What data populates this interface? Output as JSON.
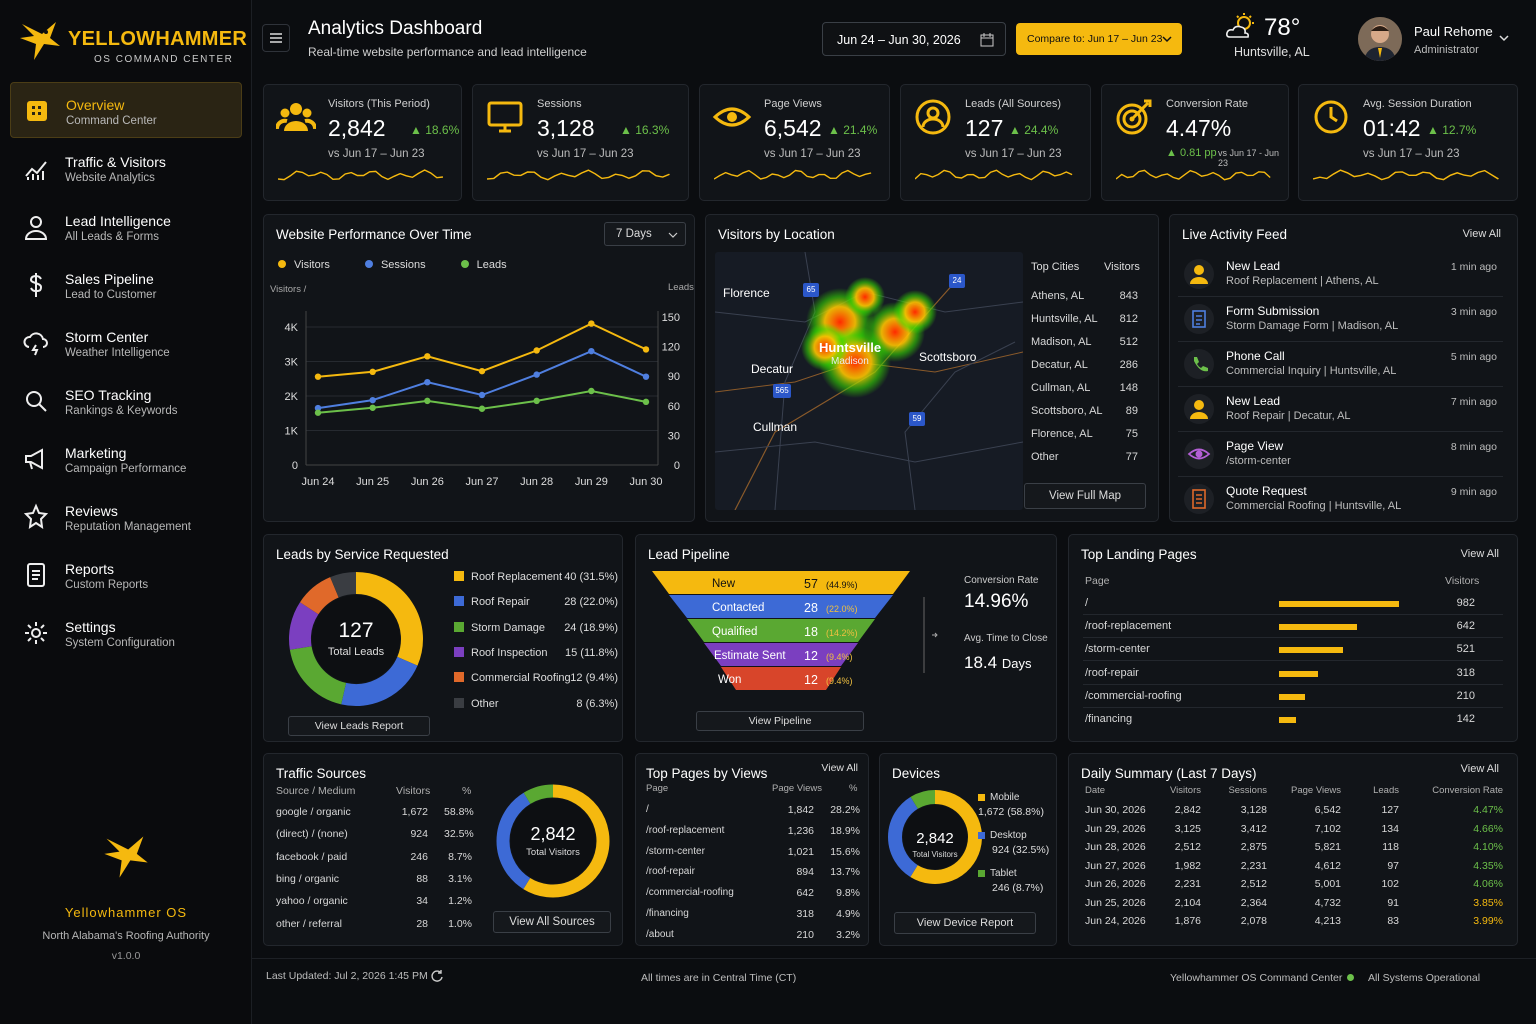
{
  "brand": {
    "name": "YELLOWHAMMER",
    "subtitle": "OS COMMAND CENTER",
    "footer_name": "Yellowhammer OS",
    "footer_tagline": "North Alabama's Roofing Authority",
    "version": "v1.0.0"
  },
  "nav": [
    {
      "label": "Overview",
      "sub": "Command Center",
      "icon": "grid-icon"
    },
    {
      "label": "Traffic & Visitors",
      "sub": "Website Analytics",
      "icon": "chart-icon"
    },
    {
      "label": "Lead Intelligence",
      "sub": "All Leads & Forms",
      "icon": "user-icon"
    },
    {
      "label": "Sales Pipeline",
      "sub": "Lead to Customer",
      "icon": "dollar-icon"
    },
    {
      "label": "Storm Center",
      "sub": "Weather Intelligence",
      "icon": "storm-icon"
    },
    {
      "label": "SEO Tracking",
      "sub": "Rankings & Keywords",
      "icon": "search-icon"
    },
    {
      "label": "Marketing",
      "sub": "Campaign Performance",
      "icon": "megaphone-icon"
    },
    {
      "label": "Reviews",
      "sub": "Reputation Management",
      "icon": "star-icon"
    },
    {
      "label": "Reports",
      "sub": "Custom Reports",
      "icon": "report-icon"
    },
    {
      "label": "Settings",
      "sub": "System Configuration",
      "icon": "gear-icon"
    }
  ],
  "header": {
    "title": "Analytics Dashboard",
    "subtitle": "Real-time website performance and lead intelligence",
    "date_range": "Jun 24 – Jun 30, 2026",
    "compare": "Compare to: Jun 17 – Jun 23",
    "temp": "78°",
    "location": "Huntsville, AL",
    "user_name": "Paul Rehome",
    "user_role": "Administrator"
  },
  "kpis": [
    {
      "label": "Visitors (This Period)",
      "value": "2,842",
      "delta": "▲ 18.6%",
      "vs": "vs Jun 17 – Jun 23"
    },
    {
      "label": "Sessions",
      "value": "3,128",
      "delta": "▲ 16.3%",
      "vs": "vs Jun 17 – Jun 23"
    },
    {
      "label": "Page Views",
      "value": "6,542",
      "delta": "▲ 21.4%",
      "vs": "vs Jun 17 – Jun 23"
    },
    {
      "label": "Leads (All Sources)",
      "value": "127",
      "delta": "▲ 24.4%",
      "vs": "vs Jun 17 – Jun 23"
    },
    {
      "label": "Conversion Rate",
      "value": "4.47%",
      "delta": "▲ 0.81 pp",
      "vs": "vs Jun 17 - Jun 23"
    },
    {
      "label": "Avg. Session Duration",
      "value": "01:42",
      "delta": "▲ 12.7%",
      "vs": "vs Jun 17 – Jun 23"
    }
  ],
  "performance": {
    "title": "Website Performance Over Time",
    "range": "7 Days",
    "legend": [
      "Visitors",
      "Sessions",
      "Leads"
    ],
    "ylabel_left": "Visitors /",
    "ylabel_right": "Leads"
  },
  "chart_data": {
    "type": "line",
    "categories": [
      "Jun 24",
      "Jun 25",
      "Jun 26",
      "Jun 27",
      "Jun 28",
      "Jun 29",
      "Jun 30"
    ],
    "series": [
      {
        "name": "Visitors",
        "axis": "left",
        "values": [
          2560,
          2700,
          3150,
          2720,
          3320,
          4100,
          3350
        ],
        "color": "#f5b90f"
      },
      {
        "name": "Sessions",
        "axis": "left",
        "values": [
          1650,
          1880,
          2400,
          2030,
          2620,
          3300,
          2560
        ],
        "color": "#4f7fe0"
      },
      {
        "name": "Leads",
        "axis": "right",
        "values": [
          53,
          58,
          65,
          57,
          65,
          75,
          64
        ],
        "color": "#6cc04a"
      }
    ],
    "y_left_ticks": [
      "0",
      "1K",
      "2K",
      "3K",
      "4K"
    ],
    "y_right_ticks": [
      "0",
      "30",
      "60",
      "90",
      "120",
      "150"
    ],
    "ylim_left": [
      0,
      4000
    ],
    "ylim_right": [
      0,
      150
    ]
  },
  "location": {
    "title": "Visitors by Location",
    "map_labels": [
      "Florence",
      "Huntsville",
      "Madison",
      "Scottsboro",
      "Decatur",
      "Cullman"
    ],
    "highway_shields": [
      "65",
      "24",
      "565",
      "59"
    ],
    "col_city": "Top Cities",
    "col_visitors": "Visitors",
    "cities": [
      [
        "Athens, AL",
        "843"
      ],
      [
        "Huntsville, AL",
        "812"
      ],
      [
        "Madison, AL",
        "512"
      ],
      [
        "Decatur, AL",
        "286"
      ],
      [
        "Cullman, AL",
        "148"
      ],
      [
        "Scottsboro, AL",
        "89"
      ],
      [
        "Florence, AL",
        "75"
      ],
      [
        "Other",
        "77"
      ]
    ],
    "button": "View Full Map"
  },
  "feed": {
    "title": "Live Activity Feed",
    "view_all": "View All",
    "items": [
      {
        "title": "New Lead",
        "sub": "Roof Replacement | Athens, AL",
        "time": "1 min ago",
        "color": "#f5b90f"
      },
      {
        "title": "Form Submission",
        "sub": "Storm Damage Form | Madison, AL",
        "time": "3 min ago",
        "color": "#4f7fe0"
      },
      {
        "title": "Phone Call",
        "sub": "Commercial Inquiry | Huntsville, AL",
        "time": "5 min ago",
        "color": "#6cc04a"
      },
      {
        "title": "New Lead",
        "sub": "Roof Repair | Decatur, AL",
        "time": "7 min ago",
        "color": "#f5b90f"
      },
      {
        "title": "Page View",
        "sub": "/storm-center",
        "time": "8 min ago",
        "color": "#b45fd6"
      },
      {
        "title": "Quote Request",
        "sub": "Commercial Roofing | Huntsville, AL",
        "time": "9 min ago",
        "color": "#e0692a"
      }
    ]
  },
  "services": {
    "title": "Leads by Service Requested",
    "total": "127",
    "total_label": "Total Leads",
    "button": "View Leads Report",
    "items": [
      {
        "name": "Roof Replacement",
        "value": "40 (31.5%)",
        "n": 40,
        "color": "#f5b90f"
      },
      {
        "name": "Roof Repair",
        "value": "28 (22.0%)",
        "n": 28,
        "color": "#3d6ad6"
      },
      {
        "name": "Storm Damage",
        "value": "24 (18.9%)",
        "n": 24,
        "color": "#5aa832"
      },
      {
        "name": "Roof Inspection",
        "value": "15 (11.8%)",
        "n": 15,
        "color": "#7b3fc0"
      },
      {
        "name": "Commercial Roofing",
        "value": "12 (9.4%)",
        "n": 12,
        "color": "#e0692a"
      },
      {
        "name": "Other",
        "value": "8 (6.3%)",
        "n": 8,
        "color": "#3a3d42"
      }
    ]
  },
  "pipeline": {
    "title": "Lead Pipeline",
    "button": "View Pipeline",
    "conv_label": "Conversion Rate",
    "conv_value": "14.96%",
    "time_label": "Avg. Time to Close",
    "time_value": "18.4",
    "time_unit": "Days",
    "stages": [
      {
        "name": "New",
        "count": "57",
        "pct": "(44.9%)",
        "color": "#f5b90f"
      },
      {
        "name": "Contacted",
        "count": "28",
        "pct": "(22.0%)",
        "color": "#3d6ad6"
      },
      {
        "name": "Qualified",
        "count": "18",
        "pct": "(14.2%)",
        "color": "#5aa832"
      },
      {
        "name": "Estimate Sent",
        "count": "12",
        "pct": "(9.4%)",
        "color": "#7b3fc0"
      },
      {
        "name": "Won",
        "count": "12",
        "pct": "(9.4%)",
        "color": "#d8452a"
      }
    ]
  },
  "landing": {
    "title": "Top Landing Pages",
    "view_all": "View All",
    "col_page": "Page",
    "col_visitors": "Visitors",
    "rows": [
      {
        "page": "/",
        "visitors": "982",
        "n": 982
      },
      {
        "page": "/roof-replacement",
        "visitors": "642",
        "n": 642
      },
      {
        "page": "/storm-center",
        "visitors": "521",
        "n": 521
      },
      {
        "page": "/roof-repair",
        "visitors": "318",
        "n": 318
      },
      {
        "page": "/commercial-roofing",
        "visitors": "210",
        "n": 210
      },
      {
        "page": "/financing",
        "visitors": "142",
        "n": 142
      }
    ]
  },
  "traffic": {
    "title": "Traffic Sources",
    "col_source": "Source / Medium",
    "col_visitors": "Visitors",
    "col_pct": "%",
    "total": "2,842",
    "total_label": "Total Visitors",
    "button": "View All Sources",
    "rows": [
      {
        "source": "google / organic",
        "visitors": "1,672",
        "pct": "58.8%",
        "n": 58.8,
        "color": "#f5b90f"
      },
      {
        "source": "(direct) / (none)",
        "visitors": "924",
        "pct": "32.5%",
        "n": 32.5,
        "color": "#3d6ad6"
      },
      {
        "source": "facebook / paid",
        "visitors": "246",
        "pct": "8.7%",
        "n": 8.7,
        "color": "#5aa832"
      },
      {
        "source": "bing / organic",
        "visitors": "88",
        "pct": "3.1%",
        "n": 0,
        "color": "#7b3fc0"
      },
      {
        "source": "yahoo / organic",
        "visitors": "34",
        "pct": "1.2%",
        "n": 0,
        "color": "#e0692a"
      },
      {
        "source": "other / referral",
        "visitors": "28",
        "pct": "1.0%",
        "n": 0,
        "color": "#555"
      }
    ]
  },
  "toppages": {
    "title": "Top Pages by Views",
    "view_all": "View All",
    "col_page": "Page",
    "col_views": "Page Views",
    "col_pct": "%",
    "rows": [
      {
        "page": "/",
        "views": "1,842",
        "pct": "28.2%"
      },
      {
        "page": "/roof-replacement",
        "views": "1,236",
        "pct": "18.9%"
      },
      {
        "page": "/storm-center",
        "views": "1,021",
        "pct": "15.6%"
      },
      {
        "page": "/roof-repair",
        "views": "894",
        "pct": "13.7%"
      },
      {
        "page": "/commercial-roofing",
        "views": "642",
        "pct": "9.8%"
      },
      {
        "page": "/financing",
        "views": "318",
        "pct": "4.9%"
      },
      {
        "page": "/about",
        "views": "210",
        "pct": "3.2%"
      }
    ]
  },
  "devices": {
    "title": "Devices",
    "total": "2,842",
    "total_label": "Total Visitors",
    "button": "View Device Report",
    "items": [
      {
        "name": "Mobile",
        "value": "1,672 (58.8%)",
        "n": 58.8,
        "color": "#f5b90f"
      },
      {
        "name": "Desktop",
        "value": "924 (32.5%)",
        "n": 32.5,
        "color": "#3d6ad6"
      },
      {
        "name": "Tablet",
        "value": "246 (8.7%)",
        "n": 8.7,
        "color": "#5aa832"
      }
    ]
  },
  "daily": {
    "title": "Daily Summary (Last 7 Days)",
    "view_all": "View All",
    "cols": [
      "Date",
      "Visitors",
      "Sessions",
      "Page Views",
      "Leads",
      "Conversion Rate"
    ],
    "rows": [
      [
        "Jun 30, 2026",
        "2,842",
        "3,128",
        "6,542",
        "127",
        "4.47%"
      ],
      [
        "Jun 29, 2026",
        "3,125",
        "3,412",
        "7,102",
        "134",
        "4.66%"
      ],
      [
        "Jun 28, 2026",
        "2,512",
        "2,875",
        "5,821",
        "118",
        "4.10%"
      ],
      [
        "Jun 27, 2026",
        "1,982",
        "2,231",
        "4,612",
        "97",
        "4.35%"
      ],
      [
        "Jun 26, 2026",
        "2,231",
        "2,512",
        "5,001",
        "102",
        "4.06%"
      ],
      [
        "Jun 25, 2026",
        "2,104",
        "2,364",
        "4,732",
        "91",
        "3.85%"
      ],
      [
        "Jun 24, 2026",
        "1,876",
        "2,078",
        "4,213",
        "83",
        "3.99%"
      ]
    ],
    "rate_colors": [
      "#6cc04a",
      "#6cc04a",
      "#6cc04a",
      "#6cc04a",
      "#6cc04a",
      "#f5b90f",
      "#f5b90f"
    ]
  },
  "footer": {
    "updated": "Last Updated: Jul 2, 2026 1:45 PM",
    "timezone": "All times are in Central Time (CT)",
    "app": "Yellowhammer OS Command Center",
    "status": "All Systems Operational"
  }
}
